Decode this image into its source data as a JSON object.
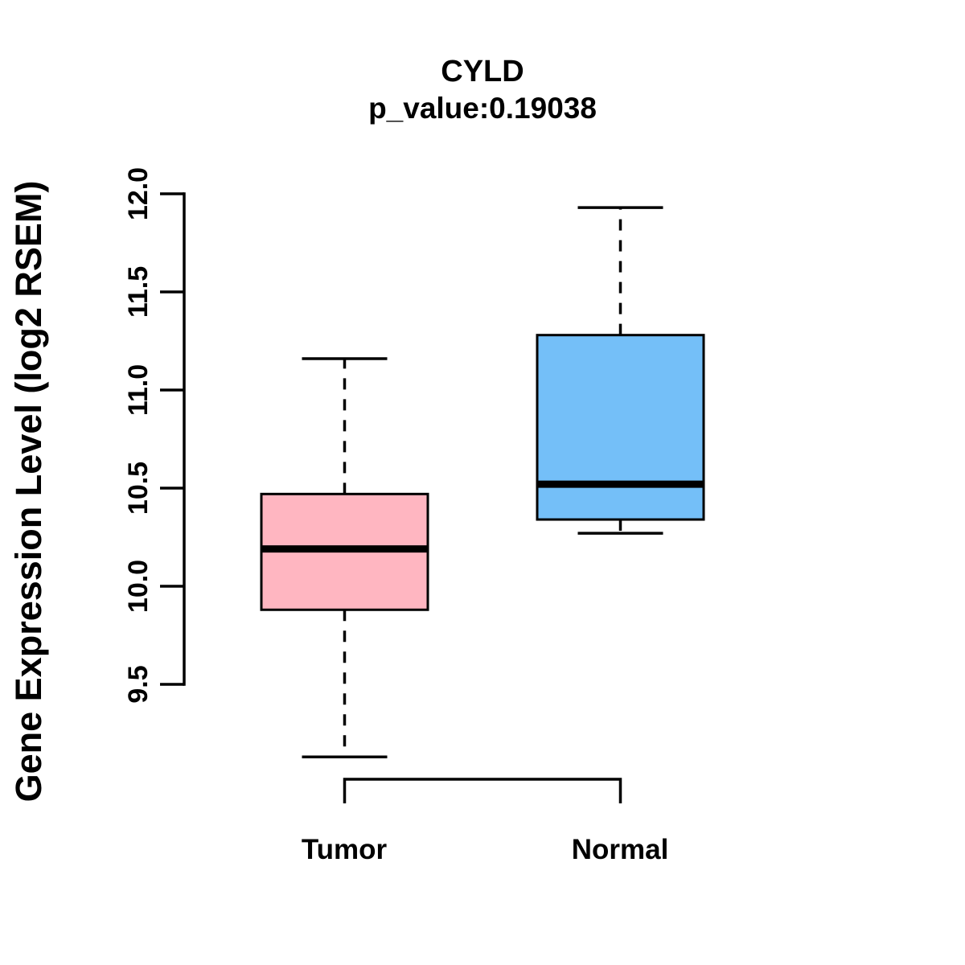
{
  "title": "CYLD",
  "subtitle": "p_value:0.19038",
  "chart_data": {
    "type": "boxplot",
    "title": "CYLD",
    "subtitle": "p_value:0.19038",
    "xlabel": "",
    "ylabel": "Gene Expression Level (log2 RSEM)",
    "categories": [
      "Tumor",
      "Normal"
    ],
    "ytick_labels": [
      "9.5",
      "10.0",
      "10.5",
      "11.0",
      "11.5",
      "12.0"
    ],
    "yticks": [
      9.5,
      10.0,
      10.5,
      11.0,
      11.5,
      12.0
    ],
    "ylim": [
      9.0,
      12.1
    ],
    "grid": false,
    "legend_position": "none",
    "series": [
      {
        "name": "Tumor",
        "color": "#ffb6c1",
        "whisker_low": 9.13,
        "q1": 9.88,
        "median": 10.19,
        "q3": 10.47,
        "whisker_high": 11.16
      },
      {
        "name": "Normal",
        "color": "#74bff8",
        "whisker_low": 10.27,
        "q1": 10.34,
        "median": 10.52,
        "q3": 11.28,
        "whisker_high": 11.93
      }
    ],
    "comparison_bracket": {
      "from": "Tumor",
      "to": "Normal"
    },
    "line_color": "#000000"
  }
}
